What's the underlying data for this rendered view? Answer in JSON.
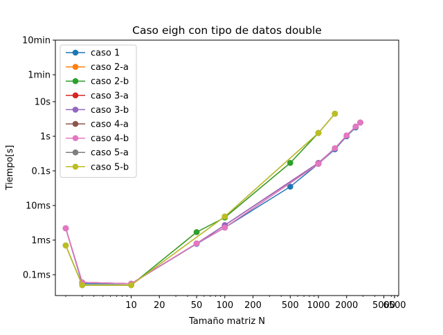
{
  "chart_data": {
    "type": "line",
    "title": "Caso eigh con tipo de datos double",
    "xlabel": "Tamaño matriz N",
    "ylabel": "Tiempo[s]",
    "x_scale": "log",
    "y_scale": "log",
    "xlim": [
      1.55,
      7200
    ],
    "ylim": [
      2.5e-05,
      600
    ],
    "x_ticks": [
      {
        "value": 10,
        "label": "10"
      },
      {
        "value": 20,
        "label": "20"
      },
      {
        "value": 50,
        "label": "50"
      },
      {
        "value": 100,
        "label": "100"
      },
      {
        "value": 200,
        "label": "200"
      },
      {
        "value": 500,
        "label": "500"
      },
      {
        "value": 1000,
        "label": "1000"
      },
      {
        "value": 2000,
        "label": "2000"
      },
      {
        "value": 5000,
        "label": "5000"
      },
      {
        "value": 6500,
        "label": "6500"
      }
    ],
    "y_ticks": [
      {
        "value": 0.0001,
        "label": "0.1ms"
      },
      {
        "value": 0.001,
        "label": "1ms"
      },
      {
        "value": 0.01,
        "label": "10ms"
      },
      {
        "value": 0.1,
        "label": "0.1s"
      },
      {
        "value": 1,
        "label": "1s"
      },
      {
        "value": 10,
        "label": "10s"
      },
      {
        "value": 60,
        "label": "1min"
      },
      {
        "value": 600,
        "label": "10min"
      }
    ],
    "grid": false,
    "legend_position": "top-left",
    "series": [
      {
        "name": "caso 1",
        "color": "#1f77b4",
        "x": [
          2,
          3,
          10,
          50,
          100,
          500,
          1000,
          1500,
          2000,
          2500,
          2800
        ],
        "y": [
          0.0022,
          5.5e-05,
          5.5e-05,
          0.00078,
          0.0023,
          0.035,
          0.16,
          0.42,
          1.0,
          1.8,
          2.5
        ]
      },
      {
        "name": "caso 2-a",
        "color": "#ff7f0e",
        "x": [
          2,
          3,
          10,
          50,
          100,
          500,
          1000,
          1500
        ],
        "y": [
          0.0007,
          5e-05,
          5e-05,
          0.0017,
          0.0045,
          0.17,
          1.25,
          4.5
        ]
      },
      {
        "name": "caso 2-b",
        "color": "#2ca02c",
        "x": [
          2,
          3,
          10,
          50,
          100,
          500,
          1000,
          1500
        ],
        "y": [
          0.0007,
          5e-05,
          5e-05,
          0.0017,
          0.0045,
          0.17,
          1.25,
          4.5
        ]
      },
      {
        "name": "caso 3-a",
        "color": "#d62728",
        "x": [
          2,
          3,
          10,
          50,
          100,
          1000,
          1500,
          2000,
          2500,
          2800
        ],
        "y": [
          0.0022,
          6e-05,
          5.5e-05,
          0.0008,
          0.0027,
          0.17,
          0.45,
          1.05,
          1.9,
          2.5
        ]
      },
      {
        "name": "caso 3-b",
        "color": "#9467bd",
        "x": [
          2,
          3,
          10,
          50,
          100,
          1000,
          1500,
          2000,
          2500,
          2800
        ],
        "y": [
          0.0022,
          6e-05,
          5.5e-05,
          0.0008,
          0.0027,
          0.17,
          0.45,
          1.05,
          1.9,
          2.5
        ]
      },
      {
        "name": "caso 4-a",
        "color": "#8c564b",
        "x": [
          2,
          3,
          10,
          50,
          100,
          1000,
          1500,
          2000,
          2500,
          2800
        ],
        "y": [
          0.0022,
          6e-05,
          5.5e-05,
          0.0008,
          0.0023,
          0.16,
          0.45,
          1.05,
          1.9,
          2.5
        ]
      },
      {
        "name": "caso 4-b",
        "color": "#e377c2",
        "x": [
          2,
          3,
          10,
          50,
          100,
          1000,
          1500,
          2000,
          2500,
          2800
        ],
        "y": [
          0.0022,
          6e-05,
          5.5e-05,
          0.0008,
          0.0023,
          0.16,
          0.45,
          1.05,
          1.9,
          2.5
        ]
      },
      {
        "name": "caso 5-a",
        "color": "#7f7f7f",
        "x": [
          2,
          3,
          10,
          100,
          1000,
          1500
        ],
        "y": [
          0.0007,
          5e-05,
          5e-05,
          0.0048,
          1.25,
          4.5
        ]
      },
      {
        "name": "caso 5-b",
        "color": "#bcbd22",
        "x": [
          2,
          3,
          10,
          100,
          1000,
          1500
        ],
        "y": [
          0.0007,
          5e-05,
          5e-05,
          0.0048,
          1.25,
          4.5
        ]
      }
    ]
  }
}
